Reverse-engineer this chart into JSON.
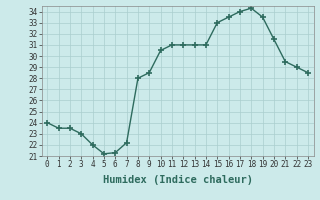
{
  "x": [
    0,
    1,
    2,
    3,
    4,
    5,
    6,
    7,
    8,
    9,
    10,
    11,
    12,
    13,
    14,
    15,
    16,
    17,
    18,
    19,
    20,
    21,
    22,
    23
  ],
  "y": [
    24.0,
    23.5,
    23.5,
    23.0,
    22.0,
    21.2,
    21.3,
    22.2,
    28.0,
    28.5,
    30.5,
    31.0,
    31.0,
    31.0,
    31.0,
    33.0,
    33.5,
    34.0,
    34.3,
    33.5,
    31.5,
    29.5,
    29.0,
    28.5
  ],
  "line_color": "#2e6b5e",
  "marker": "+",
  "marker_size": 4,
  "marker_linewidth": 1.2,
  "background_color": "#cceaea",
  "grid_color": "#aacece",
  "xlabel": "Humidex (Indice chaleur)",
  "ylim_min": 21,
  "ylim_max": 34.5,
  "xlim_min": -0.5,
  "xlim_max": 23.5,
  "yticks": [
    21,
    22,
    23,
    24,
    25,
    26,
    27,
    28,
    29,
    30,
    31,
    32,
    33,
    34
  ],
  "xtick_labels": [
    "0",
    "1",
    "2",
    "3",
    "4",
    "5",
    "6",
    "7",
    "8",
    "9",
    "10",
    "11",
    "12",
    "13",
    "14",
    "15",
    "16",
    "17",
    "18",
    "19",
    "20",
    "21",
    "22",
    "23"
  ],
  "tick_fontsize": 5.5,
  "xlabel_fontsize": 7.5,
  "line_width": 1.0
}
